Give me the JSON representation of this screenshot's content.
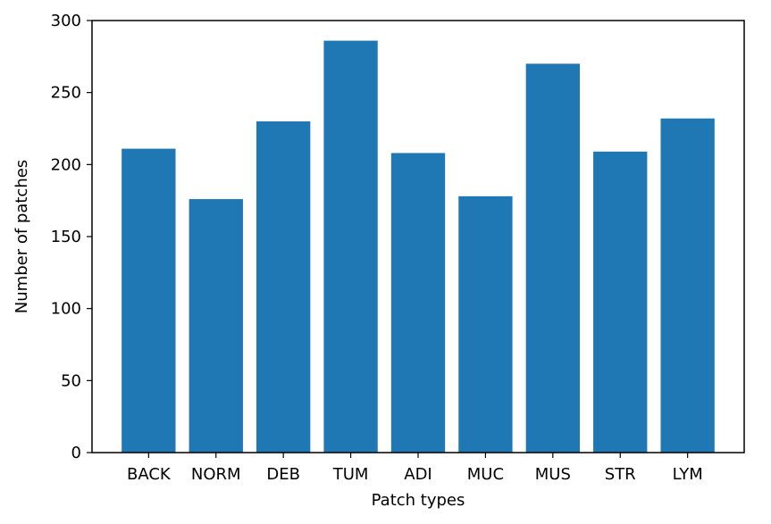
{
  "chart_data": {
    "type": "bar",
    "title": "",
    "xlabel": "Patch types",
    "ylabel": "Number of patches",
    "categories": [
      "BACK",
      "NORM",
      "DEB",
      "TUM",
      "ADI",
      "MUC",
      "MUS",
      "STR",
      "LYM"
    ],
    "values": [
      211,
      176,
      230,
      286,
      208,
      178,
      270,
      209,
      232
    ],
    "ylim": [
      0,
      300
    ],
    "yticks": [
      0,
      50,
      100,
      150,
      200,
      250,
      300
    ],
    "grid": false,
    "legend": "none",
    "bar_color": "#1f77b4"
  }
}
